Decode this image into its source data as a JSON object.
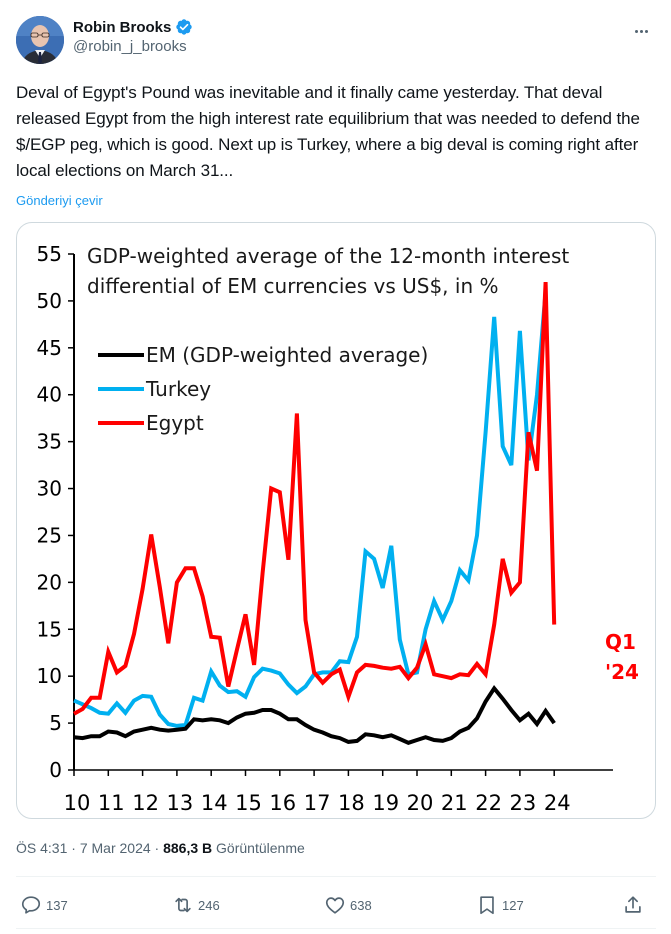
{
  "author": {
    "display_name": "Robin Brooks",
    "handle": "@robin_j_brooks",
    "verified": true
  },
  "tweet": {
    "text": "Deval of Egypt's Pound was inevitable and it finally came yesterday. That deval released Egypt from the high interest rate equilibrium that was needed to defend the $/EGP peg, which is good. Next up is Turkey, where a big deval is coming right after local elections on March 31...",
    "translate_label": "Gönderiyi çevir"
  },
  "meta": {
    "time": "ÖS 4:31",
    "separator": " · ",
    "date": "7 Mar 2024",
    "views_count": "886,3 B",
    "views_label": "Görüntülenme"
  },
  "actions": {
    "replies": "137",
    "reposts": "246",
    "likes": "638",
    "bookmarks": "127"
  },
  "icons": {
    "more": "more-horizontal-icon",
    "reply": "speech-bubble-icon",
    "repost": "repost-arrows-icon",
    "like": "heart-icon",
    "bookmark": "bookmark-icon",
    "share": "share-upload-icon",
    "verified": "verified-badge-icon"
  },
  "colors": {
    "em": "#000000",
    "turkey": "#00b0f0",
    "egypt": "#ff0000",
    "link": "#1d9bf0",
    "verified": "#1d9bf0"
  },
  "chart_data": {
    "type": "line",
    "title": "GDP-weighted average of the 12-month interest differential of EM currencies vs US$, in %",
    "title_lines": [
      "GDP-weighted average of the 12-month interest",
      "differential of EM currencies vs US$, in %"
    ],
    "xlabel": "",
    "ylabel": "",
    "x_tick_labels": [
      "10",
      "11",
      "12",
      "13",
      "14",
      "15",
      "16",
      "17",
      "18",
      "19",
      "20",
      "21",
      "22",
      "23",
      "24"
    ],
    "xlim": [
      2010,
      2025
    ],
    "ylim": [
      0,
      55
    ],
    "y_ticks": [
      0,
      5,
      10,
      15,
      20,
      25,
      30,
      35,
      40,
      45,
      50,
      55
    ],
    "grid": false,
    "legend": "top-left",
    "annotation": {
      "text_lines": [
        "Q1",
        "'24"
      ],
      "series": "Egypt"
    },
    "frequency": "quarterly",
    "x_start": 2010.0,
    "x_step": 0.25,
    "series": [
      {
        "name": "EM (GDP-weighted average)",
        "color": "#000000",
        "values": [
          3.5,
          3.4,
          3.6,
          3.6,
          4.1,
          4.0,
          3.6,
          4.1,
          4.3,
          4.5,
          4.3,
          4.2,
          4.3,
          4.4,
          5.4,
          5.3,
          5.4,
          5.3,
          5.0,
          5.6,
          6.0,
          6.1,
          6.4,
          6.4,
          6.0,
          5.4,
          5.4,
          4.8,
          4.3,
          4.0,
          3.6,
          3.4,
          3.0,
          3.1,
          3.8,
          3.7,
          3.5,
          3.7,
          3.3,
          2.9,
          3.2,
          3.5,
          3.2,
          3.1,
          3.4,
          4.1,
          4.5,
          5.5,
          7.3,
          8.7,
          7.6,
          6.4,
          5.3,
          6.0,
          4.9,
          6.3,
          5.0
        ]
      },
      {
        "name": "Turkey",
        "color": "#00b0f0",
        "values": [
          7.4,
          7.0,
          6.6,
          6.1,
          6.0,
          7.1,
          6.1,
          7.4,
          7.9,
          7.8,
          5.9,
          4.9,
          4.7,
          4.8,
          7.7,
          7.4,
          10.5,
          9.0,
          8.3,
          8.4,
          7.8,
          9.9,
          10.8,
          10.6,
          10.3,
          9.1,
          8.2,
          8.9,
          10.2,
          10.4,
          10.4,
          11.6,
          11.5,
          14.2,
          23.3,
          22.5,
          19.4,
          23.9,
          13.9,
          10.2,
          10.4,
          15.0,
          18.0,
          16.0,
          18.0,
          21.3,
          20.2,
          25.0,
          36.0,
          48.3,
          34.5,
          32.5,
          46.8,
          33.0,
          40.0,
          51.0
        ]
      },
      {
        "name": "Egypt",
        "color": "#ff0000",
        "values": [
          6.0,
          6.5,
          7.7,
          7.7,
          12.6,
          10.4,
          11.1,
          14.5,
          19.3,
          25.1,
          19.5,
          13.5,
          20.0,
          21.5,
          21.5,
          18.5,
          14.2,
          14.1,
          8.9,
          12.8,
          16.6,
          11.2,
          21.0,
          30.0,
          29.6,
          22.4,
          38.0,
          16.0,
          10.4,
          9.3,
          10.2,
          10.7,
          7.8,
          10.4,
          11.2,
          11.1,
          10.9,
          10.8,
          11.0,
          9.8,
          10.9,
          13.4,
          10.2,
          10.0,
          9.8,
          10.2,
          10.1,
          11.3,
          10.2,
          15.5,
          22.5,
          18.9,
          20.0,
          36.0,
          31.9,
          52.0,
          15.5
        ]
      }
    ]
  }
}
